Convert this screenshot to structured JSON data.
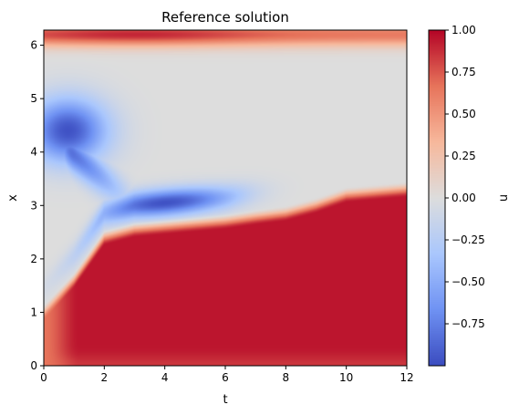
{
  "chart_data": {
    "type": "heatmap",
    "title": "Reference solution",
    "xlabel": "t",
    "ylabel": "x",
    "xlim": [
      0,
      12
    ],
    "ylim": [
      0,
      6.283
    ],
    "x_ticks": [
      0,
      2,
      4,
      6,
      8,
      10,
      12
    ],
    "y_ticks": [
      0,
      1,
      2,
      3,
      4,
      5,
      6
    ],
    "x_tick_labels": [
      "0",
      "2",
      "4",
      "6",
      "8",
      "10",
      "12"
    ],
    "y_tick_labels": [
      "0",
      "1",
      "2",
      "3",
      "4",
      "5",
      "6"
    ],
    "colormap": "coolwarm",
    "colormap_stops": [
      "#3b4cc0",
      "#6f92f3",
      "#aac7fd",
      "#dddddd",
      "#f7b89c",
      "#e7745b",
      "#b40426"
    ],
    "vmin": -1.0,
    "vmax": 1.0,
    "colorbar": {
      "label": "u",
      "ticks": [
        -0.75,
        -0.5,
        -0.25,
        0.0,
        0.25,
        0.5,
        0.75,
        1.0
      ],
      "tick_labels": [
        "−0.75",
        "−0.50",
        "−0.25",
        "0.00",
        "0.25",
        "0.50",
        "0.75",
        "1.00"
      ]
    },
    "regions": {
      "front_x_at_t": {
        "t": [
          0,
          1,
          2,
          3,
          4,
          5,
          6,
          7,
          8,
          9,
          10,
          11,
          12
        ],
        "x": [
          1.0,
          1.6,
          2.4,
          2.55,
          2.6,
          2.65,
          2.7,
          2.78,
          2.85,
          3.0,
          3.2,
          3.25,
          3.3
        ]
      },
      "top_band_center_x": 6.2,
      "blue_blob_center": {
        "t": 0.8,
        "x": 4.4
      },
      "blue_ridge_center": {
        "t": 4.0,
        "x": 3.05
      },
      "red_min": 0.95,
      "blue_min": -0.95
    }
  }
}
